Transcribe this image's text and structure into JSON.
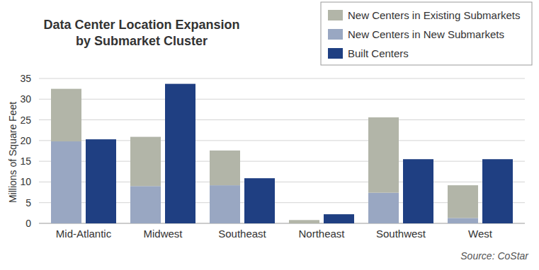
{
  "chart_data": {
    "type": "bar",
    "title": "Data Center Location Expansion\nby Submarket Cluster",
    "ylabel": "Millions of Square Feet",
    "annotations": [
      "Source: CoStar"
    ],
    "categories": [
      "Mid-Atlantic",
      "Midwest",
      "Southeast",
      "Northeast",
      "Southwest",
      "West"
    ],
    "series": [
      {
        "name": "New Centers in Existing Submarkets",
        "color": "#b2b5a8",
        "type": "stacked_bar",
        "values": [
          12.7,
          11.9,
          8.4,
          0.8,
          18.2,
          7.9
        ]
      },
      {
        "name": "New Centers in New Submarkets",
        "color": "#99a7c2",
        "type": "stacked_bar",
        "values": [
          19.8,
          9.0,
          9.2,
          0,
          7.4,
          1.3
        ]
      },
      {
        "name": "Built Centers",
        "color": "#1f3f82",
        "type": "bar",
        "values": [
          20.3,
          33.7,
          10.9,
          2.2,
          15.5,
          15.5
        ]
      }
    ],
    "stacked": true,
    "ylim": [
      0,
      35
    ],
    "yticks": [
      0,
      5,
      10,
      15,
      20,
      25,
      30,
      35
    ],
    "grid": true,
    "legend": "upper right"
  }
}
